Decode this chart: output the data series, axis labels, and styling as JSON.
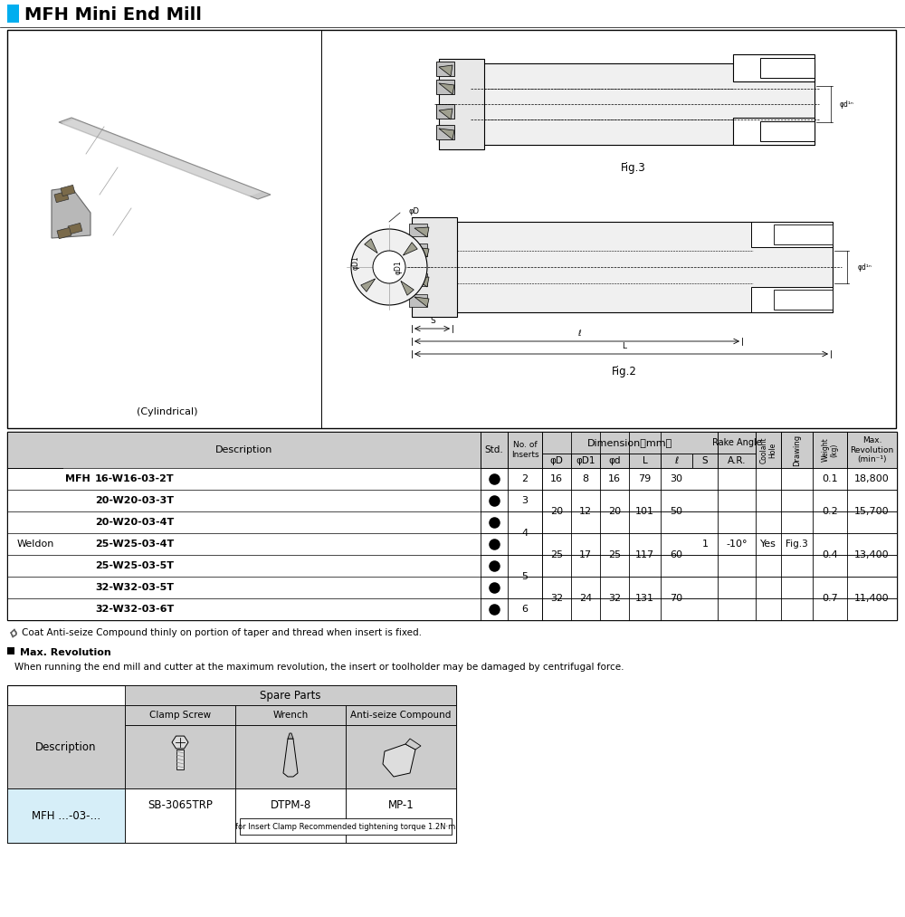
{
  "title": "MFH Mini End Mill",
  "accent_color": "#00AEEF",
  "bg_color": "#FFFFFF",
  "table_header_bg": "#CCCCCC",
  "table_white_bg": "#FFFFFF",
  "table_blue_bg": "#D6EEF8",
  "fig2_label": "Fig.2",
  "fig3_label": "Fig.3",
  "cylindrical_label": "(Cylindrical)",
  "models": [
    "16-W16-03-2T",
    "20-W20-03-3T",
    "20-W20-03-4T",
    "25-W25-03-4T",
    "25-W25-03-5T",
    "32-W32-03-5T",
    "32-W32-03-6T"
  ],
  "insert_groups": [
    [
      0,
      1,
      "2"
    ],
    [
      1,
      1,
      "3"
    ],
    [
      2,
      2,
      "4"
    ],
    [
      4,
      2,
      "5"
    ],
    [
      6,
      1,
      "6"
    ]
  ],
  "dim_groups": [
    [
      0,
      1,
      "16",
      "8",
      "16",
      "79",
      "30"
    ],
    [
      1,
      2,
      "20",
      "12",
      "20",
      "101",
      "50"
    ],
    [
      3,
      2,
      "25",
      "17",
      "25",
      "117",
      "60"
    ],
    [
      5,
      2,
      "32",
      "24",
      "32",
      "131",
      "70"
    ]
  ],
  "wt_rev_groups": [
    [
      0,
      1,
      "0.1",
      "18,800"
    ],
    [
      1,
      2,
      "0.2",
      "15,700"
    ],
    [
      3,
      2,
      "0.4",
      "13,400"
    ],
    [
      5,
      2,
      "0.7",
      "11,400"
    ]
  ],
  "shared_S": "1",
  "shared_AR": "-10°",
  "note": "Coat Anti-seize Compound thinly on portion of taper and thread when insert is fixed.",
  "max_rev_title": "Max. Revolution",
  "max_rev_text": "When running the end mill and cutter at the maximum revolution, the insert or toolholder may be damaged by centrifugal force.",
  "spare_parts_header": "Spare Parts",
  "spare_col1": "Clamp Screw",
  "spare_col2": "Wrench",
  "spare_col3": "Anti-seize Compound",
  "spare_desc_label": "Description",
  "spare_row_label": "MFH …-03-…",
  "spare_part1": "SB-3065TRP",
  "spare_part2": "DTPM-8",
  "spare_part3": "MP-1",
  "spare_note": "for Insert Clamp Recommended tightening torque 1.2N·m"
}
